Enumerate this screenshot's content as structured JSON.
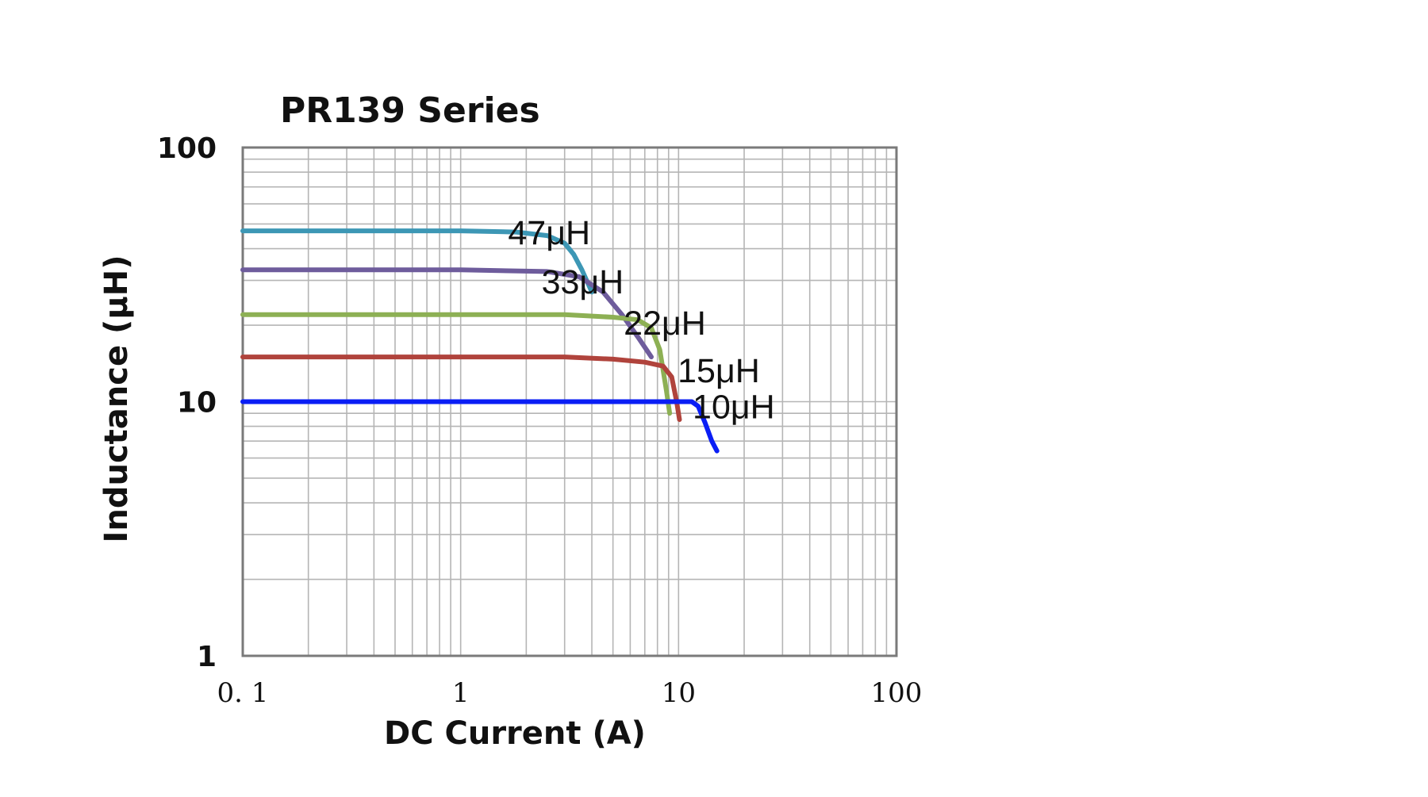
{
  "chart_data": {
    "type": "line",
    "title": "PR139 Series",
    "xlabel": "DC Current (A)",
    "ylabel": "Inductance (μH)",
    "x_scale": "log",
    "y_scale": "log",
    "xlim": [
      0.1,
      100
    ],
    "ylim": [
      1,
      100
    ],
    "x_ticks": [
      0.1,
      1,
      10,
      100
    ],
    "x_tick_labels": [
      "0. 1",
      "1",
      "10",
      "100"
    ],
    "y_ticks": [
      1,
      10,
      100
    ],
    "y_tick_labels": [
      "1",
      "10",
      "100"
    ],
    "grid": true,
    "legend": "none",
    "series": [
      {
        "name": "47μH",
        "color": "#3D97B5",
        "x": [
          0.1,
          0.3,
          1,
          1.8,
          2.5,
          3.0,
          3.3,
          3.6,
          4.0
        ],
        "y": [
          47,
          47,
          47,
          46.5,
          45,
          42,
          38,
          33,
          27
        ]
      },
      {
        "name": "33μH",
        "color": "#6E5C9C",
        "x": [
          0.1,
          1,
          2.5,
          3.5,
          4.5,
          5.5,
          6.5,
          7.5
        ],
        "y": [
          33,
          33,
          32.5,
          31,
          27,
          22,
          18,
          15
        ]
      },
      {
        "name": "22μH",
        "color": "#8DB054",
        "x": [
          0.1,
          1,
          3,
          5,
          6.5,
          7.5,
          8.2,
          8.8,
          9.1
        ],
        "y": [
          22,
          22,
          22,
          21.5,
          21,
          19.5,
          16,
          11,
          9
        ]
      },
      {
        "name": "15μH",
        "color": "#B0433C",
        "x": [
          0.1,
          1,
          3,
          5,
          7,
          8.5,
          9.3,
          9.8,
          10.1
        ],
        "y": [
          15,
          15,
          15,
          14.7,
          14.3,
          13.8,
          12.5,
          10,
          8.5
        ]
      },
      {
        "name": "10μH",
        "color": "#0A1EF5",
        "x": [
          0.1,
          1,
          5,
          10,
          11.5,
          12.3,
          13.2,
          14.2,
          15.0
        ],
        "y": [
          10,
          10,
          10,
          10,
          10,
          9.6,
          8.3,
          7.0,
          6.4
        ]
      }
    ],
    "labels": [
      {
        "text": "47μH",
        "x": 1.65,
        "y": 46
      },
      {
        "text": "33μH",
        "x": 2.35,
        "y": 29.5
      },
      {
        "text": "22μH",
        "x": 5.6,
        "y": 20.3
      },
      {
        "text": "15μH",
        "x": 9.9,
        "y": 13.2
      },
      {
        "text": "10μH",
        "x": 11.6,
        "y": 9.5
      }
    ]
  }
}
